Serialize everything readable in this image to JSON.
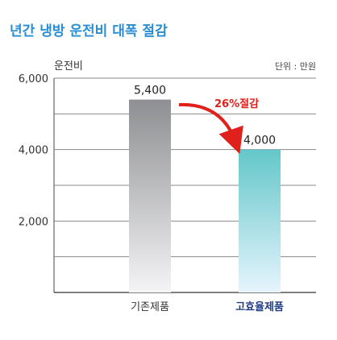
{
  "title": "년간 냉방 운전비 대폭 절감",
  "chart_data": {
    "type": "bar",
    "ylabel": "운전비",
    "unit_note": "단위 : 만원",
    "categories": [
      "기존제품",
      "고효율제품"
    ],
    "values": [
      5400,
      4000
    ],
    "value_labels": [
      "5,400",
      "4,000"
    ],
    "ylim": [
      0,
      6000
    ],
    "yticks": [
      2000,
      4000,
      6000
    ],
    "ytick_labels": [
      "2,000",
      "4,000",
      "6,000"
    ],
    "grid_step": 1000,
    "grid": true,
    "annotation": "26%절감",
    "colors": {
      "bar1_top": "#8e8f92",
      "bar1_bottom": "#f4f4f6",
      "bar2_top": "#63c7c9",
      "bar2_bottom": "#e6f4fd",
      "highlight_label": "#1f3b86",
      "annotation": "#e0201b"
    }
  }
}
